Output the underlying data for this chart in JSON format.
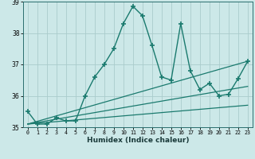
{
  "xlabel": "Humidex (Indice chaleur)",
  "x_data": [
    0,
    1,
    2,
    3,
    4,
    5,
    6,
    7,
    8,
    9,
    10,
    11,
    12,
    13,
    14,
    15,
    16,
    17,
    18,
    19,
    20,
    21,
    22,
    23
  ],
  "y_main": [
    35.5,
    35.1,
    35.1,
    35.3,
    35.2,
    35.2,
    36.0,
    36.6,
    37.0,
    37.5,
    38.3,
    38.85,
    38.55,
    37.6,
    36.6,
    36.5,
    38.3,
    36.8,
    36.2,
    36.4,
    36.0,
    36.05,
    36.55,
    37.1
  ],
  "line_color": "#1a7a6e",
  "bg_color": "#cce8e8",
  "grid_color": "#aacccc",
  "xlim": [
    -0.5,
    23.5
  ],
  "ylim": [
    35.0,
    39.0
  ],
  "yticks": [
    35,
    36,
    37,
    38,
    39
  ],
  "xticks": [
    0,
    1,
    2,
    3,
    4,
    5,
    6,
    7,
    8,
    9,
    10,
    11,
    12,
    13,
    14,
    15,
    16,
    17,
    18,
    19,
    20,
    21,
    22,
    23
  ],
  "trend_line1": [
    [
      0,
      35.1
    ],
    [
      23,
      37.1
    ]
  ],
  "trend_line2": [
    [
      0,
      35.1
    ],
    [
      23,
      36.3
    ]
  ],
  "trend_line3": [
    [
      0,
      35.1
    ],
    [
      23,
      35.7
    ]
  ]
}
